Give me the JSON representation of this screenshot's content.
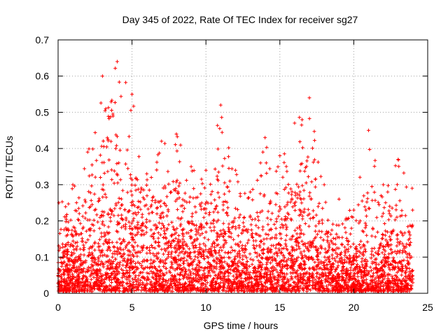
{
  "chart_data": {
    "type": "scatter",
    "title": "Day 345 of 2022, Rate Of TEC Index for receiver sg27",
    "xlabel": "GPS time / hours",
    "ylabel": "ROTI / TECUs",
    "xlim": [
      0,
      25
    ],
    "ylim": [
      0,
      0.7
    ],
    "x_ticks": [
      "0",
      "5",
      "10",
      "15",
      "20",
      "25"
    ],
    "y_ticks": [
      "0",
      "0.1",
      "0.2",
      "0.3",
      "0.4",
      "0.5",
      "0.6",
      "0.7"
    ],
    "grid": true,
    "marker": "+",
    "color": "#ff0000",
    "x_range_of_data": [
      0,
      24
    ],
    "series": [
      {
        "name": "ROTI",
        "envelope_hours": [
          0,
          1,
          2,
          3,
          4,
          5,
          6,
          7,
          8,
          9,
          10,
          11,
          12,
          13,
          14,
          15,
          16,
          17,
          18,
          19,
          20,
          21,
          22,
          23,
          24
        ],
        "typical_values": [
          0.06,
          0.07,
          0.1,
          0.13,
          0.12,
          0.16,
          0.15,
          0.14,
          0.15,
          0.14,
          0.12,
          0.13,
          0.1,
          0.08,
          0.09,
          0.12,
          0.14,
          0.13,
          0.08,
          0.07,
          0.06,
          0.07,
          0.07,
          0.09,
          0.08
        ],
        "peak_values": [
          0.25,
          0.3,
          0.39,
          0.6,
          0.64,
          0.55,
          0.33,
          0.42,
          0.44,
          0.35,
          0.34,
          0.52,
          0.34,
          0.28,
          0.43,
          0.38,
          0.47,
          0.54,
          0.3,
          0.26,
          0.23,
          0.45,
          0.3,
          0.37,
          0.29
        ]
      }
    ]
  }
}
